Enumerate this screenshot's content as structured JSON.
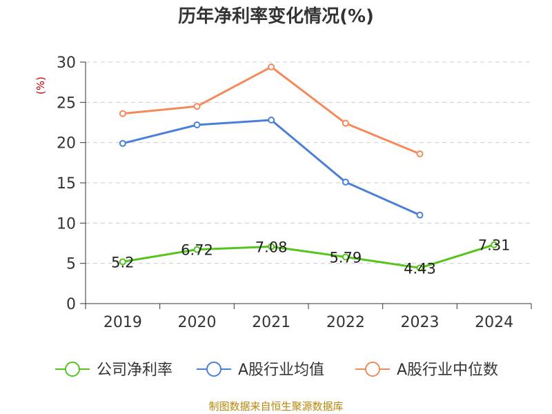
{
  "chart_data": {
    "type": "line",
    "title": "历年净利率变化情况(%)",
    "ylabel": "(%)",
    "categories": [
      "2019",
      "2020",
      "2021",
      "2022",
      "2023",
      "2024"
    ],
    "ylim": [
      0,
      30
    ],
    "yticks": [
      0,
      5,
      10,
      15,
      20,
      25,
      30
    ],
    "grid": true,
    "legend_position": "bottom",
    "series": [
      {
        "name": "公司净利率",
        "color": "#52c41a",
        "values": [
          5.2,
          6.72,
          7.08,
          5.79,
          4.43,
          7.31
        ],
        "labels": [
          "5.2",
          "6.72",
          "7.08",
          "5.79",
          "4.43",
          "7.31"
        ]
      },
      {
        "name": "A股行业均值",
        "color": "#4a7fd9",
        "values": [
          19.9,
          22.2,
          22.8,
          15.1,
          11.0,
          null
        ]
      },
      {
        "name": "A股行业中位数",
        "color": "#f5895a",
        "values": [
          23.6,
          24.5,
          29.4,
          22.4,
          18.6,
          null
        ]
      }
    ]
  },
  "source_text": "制图数据来自恒生聚源数据库"
}
